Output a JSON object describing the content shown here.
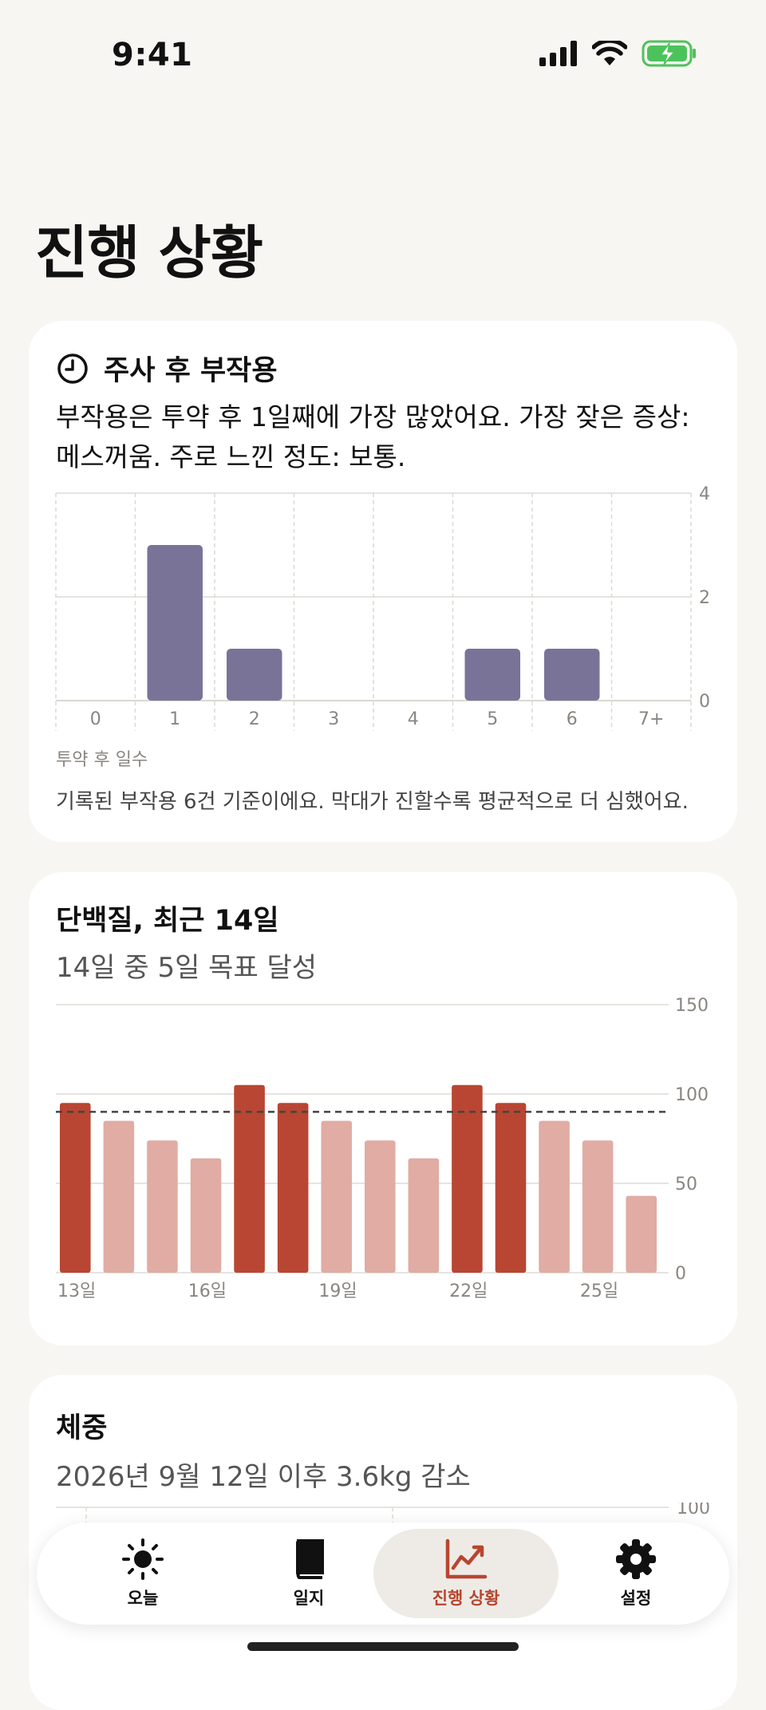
{
  "status": {
    "time": "9:41"
  },
  "page": {
    "title": "진행 상황"
  },
  "side_effects": {
    "title": "주사 후 부작용",
    "summary": "부작용은 투약 후 1일째에 가장 많았어요. 가장 잦은 증상: 메스꺼움. 주로 느낀 정도: 보통.",
    "x_caption": "투약 후 일수",
    "footnote": "기록된 부작용 6건 기준이에요. 막대가 진할수록 평균적으로 더 심했어요.",
    "bar_color": "#7a7398"
  },
  "protein": {
    "title": "단백질, 최근 14일",
    "subtitle": "14일 중 5일 목표 달성",
    "met_color": "#b84632",
    "unmet_color": "#e0aca3"
  },
  "weight": {
    "title": "체중",
    "subtitle": "2026년 9월 12일 이후 3.6kg 감소"
  },
  "tabs": [
    {
      "label": "오늘",
      "icon": "sun-icon"
    },
    {
      "label": "일지",
      "icon": "book-icon"
    },
    {
      "label": "진행 상황",
      "icon": "chart-line-icon",
      "active": true
    },
    {
      "label": "설정",
      "icon": "gear-icon"
    }
  ],
  "chart_data": [
    {
      "type": "bar",
      "categories": [
        "0",
        "1",
        "2",
        "3",
        "4",
        "5",
        "6",
        "7+"
      ],
      "values": [
        0,
        3,
        1,
        0,
        0,
        1,
        1,
        0
      ],
      "xlabel": "투약 후 일수",
      "ylabel": "",
      "ylim": [
        0,
        4
      ],
      "yticks": [
        0,
        2,
        4
      ],
      "grid": true,
      "y_axis_side": "right"
    },
    {
      "type": "bar",
      "categories": [
        "13일",
        "14일",
        "15일",
        "16일",
        "17일",
        "18일",
        "19일",
        "20일",
        "21일",
        "22일",
        "23일",
        "24일",
        "25일",
        "26일"
      ],
      "x_tick_labels": [
        "13일",
        "16일",
        "19일",
        "22일",
        "25일"
      ],
      "values": [
        95,
        85,
        74,
        64,
        105,
        95,
        85,
        74,
        64,
        105,
        95,
        85,
        74,
        43
      ],
      "goal_met": [
        true,
        false,
        false,
        false,
        true,
        true,
        false,
        false,
        false,
        true,
        true,
        false,
        false,
        false
      ],
      "target": 90,
      "ylim": [
        0,
        150
      ],
      "yticks": [
        0,
        50,
        100,
        150
      ],
      "grid": true,
      "y_axis_side": "right"
    },
    {
      "type": "line",
      "yticks": [
        100
      ],
      "y_axis_side": "right"
    }
  ]
}
